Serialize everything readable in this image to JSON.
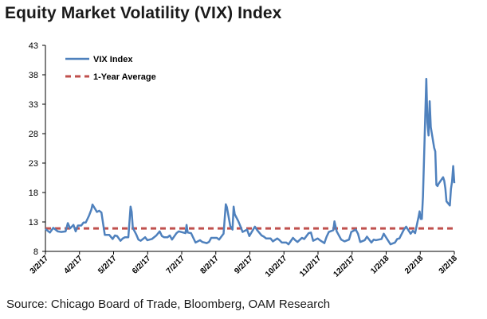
{
  "title": "Equity Market Volatility (VIX) Index",
  "source": "Source: Chicago Board of Trade, Bloomberg, OAM Research",
  "chart_data": {
    "type": "line",
    "title": "Equity Market Volatility (VIX) Index",
    "xlabel": "",
    "ylabel": "",
    "ylim": [
      8,
      43
    ],
    "yticks": [
      8,
      13,
      18,
      23,
      28,
      33,
      38,
      43
    ],
    "xlim": [
      "2017-03-02",
      "2018-03-02"
    ],
    "xticks": [
      "3/2/17",
      "4/2/17",
      "5/2/17",
      "6/2/17",
      "7/2/17",
      "8/2/17",
      "9/2/17",
      "10/2/17",
      "11/2/17",
      "12/2/17",
      "1/2/18",
      "2/2/18",
      "3/2/18"
    ],
    "grid": false,
    "legend": "top-left",
    "series": [
      {
        "name": "VIX Index",
        "color": "#4f81bd",
        "style": "solid",
        "points": [
          [
            "2017-03-02",
            11.8
          ],
          [
            "2017-03-06",
            11.2
          ],
          [
            "2017-03-09",
            12.0
          ],
          [
            "2017-03-13",
            11.4
          ],
          [
            "2017-03-16",
            11.3
          ],
          [
            "2017-03-20",
            11.4
          ],
          [
            "2017-03-22",
            12.8
          ],
          [
            "2017-03-24",
            11.9
          ],
          [
            "2017-03-27",
            12.5
          ],
          [
            "2017-03-29",
            11.4
          ],
          [
            "2017-03-31",
            12.4
          ],
          [
            "2017-04-03",
            12.4
          ],
          [
            "2017-04-05",
            12.9
          ],
          [
            "2017-04-07",
            12.9
          ],
          [
            "2017-04-10",
            14.1
          ],
          [
            "2017-04-12",
            15.1
          ],
          [
            "2017-04-13",
            15.96
          ],
          [
            "2017-04-17",
            14.7
          ],
          [
            "2017-04-19",
            14.9
          ],
          [
            "2017-04-21",
            14.6
          ],
          [
            "2017-04-24",
            10.8
          ],
          [
            "2017-04-26",
            10.8
          ],
          [
            "2017-04-28",
            10.8
          ],
          [
            "2017-05-01",
            10.1
          ],
          [
            "2017-05-03",
            10.7
          ],
          [
            "2017-05-05",
            10.6
          ],
          [
            "2017-05-08",
            9.8
          ],
          [
            "2017-05-10",
            10.2
          ],
          [
            "2017-05-12",
            10.4
          ],
          [
            "2017-05-15",
            10.4
          ],
          [
            "2017-05-17",
            15.6
          ],
          [
            "2017-05-18",
            14.7
          ],
          [
            "2017-05-19",
            12.0
          ],
          [
            "2017-05-22",
            10.9
          ],
          [
            "2017-05-24",
            10.0
          ],
          [
            "2017-05-26",
            9.8
          ],
          [
            "2017-05-30",
            10.4
          ],
          [
            "2017-06-01",
            9.9
          ],
          [
            "2017-06-05",
            10.1
          ],
          [
            "2017-06-07",
            10.4
          ],
          [
            "2017-06-09",
            10.7
          ],
          [
            "2017-06-12",
            11.4
          ],
          [
            "2017-06-14",
            10.6
          ],
          [
            "2017-06-16",
            10.4
          ],
          [
            "2017-06-19",
            10.4
          ],
          [
            "2017-06-21",
            10.7
          ],
          [
            "2017-06-23",
            10.0
          ],
          [
            "2017-06-27",
            11.1
          ],
          [
            "2017-06-29",
            11.4
          ],
          [
            "2017-07-03",
            11.2
          ],
          [
            "2017-07-05",
            11.1
          ],
          [
            "2017-07-06",
            12.5
          ],
          [
            "2017-07-07",
            11.2
          ],
          [
            "2017-07-10",
            11.1
          ],
          [
            "2017-07-12",
            10.3
          ],
          [
            "2017-07-14",
            9.5
          ],
          [
            "2017-07-18",
            9.9
          ],
          [
            "2017-07-20",
            9.6
          ],
          [
            "2017-07-24",
            9.4
          ],
          [
            "2017-07-26",
            9.6
          ],
          [
            "2017-07-28",
            10.3
          ],
          [
            "2017-07-31",
            10.3
          ],
          [
            "2017-08-02",
            10.3
          ],
          [
            "2017-08-04",
            10.0
          ],
          [
            "2017-08-08",
            11.0
          ],
          [
            "2017-08-10",
            16.0
          ],
          [
            "2017-08-11",
            15.5
          ],
          [
            "2017-08-14",
            12.3
          ],
          [
            "2017-08-16",
            11.7
          ],
          [
            "2017-08-17",
            15.6
          ],
          [
            "2017-08-18",
            14.3
          ],
          [
            "2017-08-21",
            13.2
          ],
          [
            "2017-08-23",
            12.3
          ],
          [
            "2017-08-25",
            11.3
          ],
          [
            "2017-08-29",
            11.7
          ],
          [
            "2017-08-31",
            10.6
          ],
          [
            "2017-09-05",
            12.2
          ],
          [
            "2017-09-07",
            11.6
          ],
          [
            "2017-09-11",
            10.7
          ],
          [
            "2017-09-13",
            10.5
          ],
          [
            "2017-09-15",
            10.2
          ],
          [
            "2017-09-19",
            10.2
          ],
          [
            "2017-09-21",
            9.7
          ],
          [
            "2017-09-25",
            10.2
          ],
          [
            "2017-09-27",
            9.9
          ],
          [
            "2017-09-29",
            9.5
          ],
          [
            "2017-10-03",
            9.5
          ],
          [
            "2017-10-05",
            9.2
          ],
          [
            "2017-10-09",
            10.3
          ],
          [
            "2017-10-11",
            9.9
          ],
          [
            "2017-10-13",
            9.6
          ],
          [
            "2017-10-17",
            10.3
          ],
          [
            "2017-10-19",
            10.1
          ],
          [
            "2017-10-23",
            11.1
          ],
          [
            "2017-10-25",
            11.2
          ],
          [
            "2017-10-27",
            9.8
          ],
          [
            "2017-10-31",
            10.2
          ],
          [
            "2017-11-02",
            9.9
          ],
          [
            "2017-11-06",
            9.4
          ],
          [
            "2017-11-08",
            10.5
          ],
          [
            "2017-11-10",
            11.3
          ],
          [
            "2017-11-14",
            11.6
          ],
          [
            "2017-11-15",
            13.1
          ],
          [
            "2017-11-17",
            11.4
          ],
          [
            "2017-11-21",
            10.0
          ],
          [
            "2017-11-24",
            9.7
          ],
          [
            "2017-11-28",
            10.0
          ],
          [
            "2017-11-30",
            11.3
          ],
          [
            "2017-12-04",
            11.7
          ],
          [
            "2017-12-06",
            11.0
          ],
          [
            "2017-12-08",
            9.6
          ],
          [
            "2017-12-12",
            9.9
          ],
          [
            "2017-12-14",
            10.5
          ],
          [
            "2017-12-18",
            9.5
          ],
          [
            "2017-12-20",
            10.0
          ],
          [
            "2017-12-22",
            9.9
          ],
          [
            "2017-12-27",
            10.1
          ],
          [
            "2017-12-29",
            11.0
          ],
          [
            "2018-01-02",
            9.8
          ],
          [
            "2018-01-04",
            9.2
          ],
          [
            "2018-01-08",
            9.5
          ],
          [
            "2018-01-10",
            10.1
          ],
          [
            "2018-01-12",
            10.2
          ],
          [
            "2018-01-16",
            11.7
          ],
          [
            "2018-01-18",
            12.2
          ],
          [
            "2018-01-22",
            11.0
          ],
          [
            "2018-01-24",
            11.5
          ],
          [
            "2018-01-26",
            11.1
          ],
          [
            "2018-01-29",
            13.8
          ],
          [
            "2018-01-30",
            14.8
          ],
          [
            "2018-01-31",
            13.5
          ],
          [
            "2018-02-01",
            13.5
          ],
          [
            "2018-02-02",
            17.3
          ],
          [
            "2018-02-05",
            37.3
          ],
          [
            "2018-02-06",
            29.9
          ],
          [
            "2018-02-07",
            27.7
          ],
          [
            "2018-02-08",
            33.5
          ],
          [
            "2018-02-09",
            29.1
          ],
          [
            "2018-02-12",
            25.6
          ],
          [
            "2018-02-13",
            24.97
          ],
          [
            "2018-02-14",
            19.3
          ],
          [
            "2018-02-15",
            19.1
          ],
          [
            "2018-02-16",
            19.5
          ],
          [
            "2018-02-20",
            20.6
          ],
          [
            "2018-02-21",
            20.0
          ],
          [
            "2018-02-22",
            18.7
          ],
          [
            "2018-02-23",
            16.5
          ],
          [
            "2018-02-26",
            15.8
          ],
          [
            "2018-02-27",
            18.6
          ],
          [
            "2018-02-28",
            19.9
          ],
          [
            "2018-03-01",
            22.5
          ],
          [
            "2018-03-02",
            19.6
          ]
        ]
      },
      {
        "name": "1-Year Average",
        "color": "#c0504d",
        "style": "dashed",
        "points": [
          [
            "2017-03-02",
            11.9
          ],
          [
            "2018-03-02",
            11.9
          ]
        ]
      }
    ]
  }
}
